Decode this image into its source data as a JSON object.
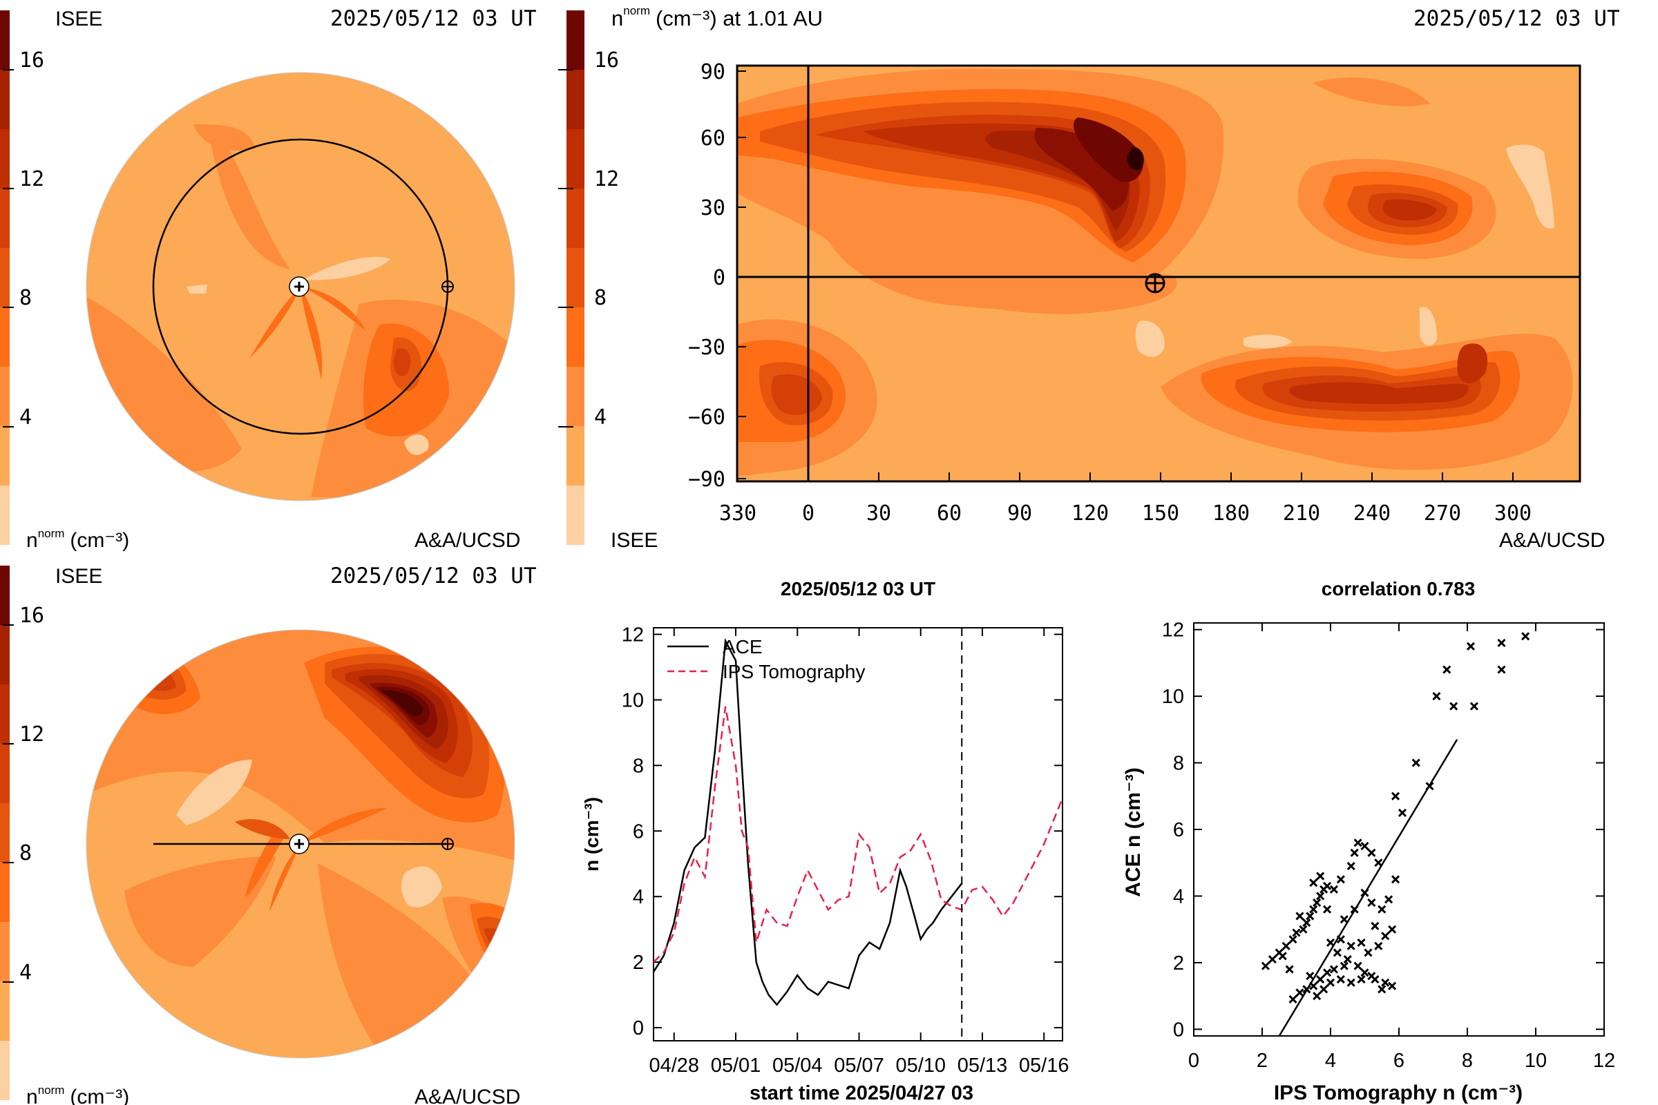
{
  "colors": {
    "c1": "#fdd0a2",
    "c2": "#fdaa56",
    "c3": "#fd8d3c",
    "c4": "#fd6e16",
    "c5": "#e6550d",
    "c6": "#d44008",
    "c7": "#c02e04",
    "c8": "#a62203",
    "c9": "#8b0f02",
    "c10": "#6e0601",
    "c11": "#4d0300",
    "c12": "#2a0000",
    "ips": "#e8204a",
    "ace": "#000000",
    "background": "#ffffff"
  },
  "colorbar": {
    "ticks": [
      "4",
      "8",
      "12",
      "16"
    ],
    "levels": 12
  },
  "panel_top_left": {
    "org": "ISEE",
    "date": "2025/05/12 03 UT",
    "unit_base": "n",
    "unit_sup": "norm",
    "unit_tail": "(cm⁻³)",
    "credit": "A&A/UCSD"
  },
  "panel_bottom_left": {
    "org": "ISEE",
    "date": "2025/05/12 03 UT",
    "unit_base": "n",
    "unit_sup": "norm",
    "unit_tail": "(cm⁻³)",
    "credit": "A&A/UCSD"
  },
  "panel_map": {
    "title_base": "n",
    "title_sup": "norm",
    "title_tail": "(cm⁻³) at 1.01 AU",
    "date": "2025/05/12 03 UT",
    "org": "ISEE",
    "credit": "A&A/UCSD",
    "x_ticks": [
      "330",
      "0",
      "30",
      "60",
      "90",
      "120",
      "150",
      "180",
      "210",
      "240",
      "270",
      "300"
    ],
    "y_ticks": [
      "90",
      "60",
      "30",
      "0",
      "−30",
      "−60",
      "−90"
    ]
  },
  "chart_data": [
    {
      "type": "line",
      "title": "2025/05/12 03 UT",
      "xlabel": "start time 2025/04/27 03",
      "ylabel": "n (cm⁻³)",
      "x_unit": "days after 2025/04/27 03 UT",
      "x_ticks": [
        1,
        4,
        7,
        10,
        13,
        16,
        19
      ],
      "x_tick_labels": [
        "04/28",
        "05/01",
        "05/04",
        "05/07",
        "05/10",
        "05/13",
        "05/16"
      ],
      "y_ticks": [
        0,
        2,
        4,
        6,
        8,
        10,
        12
      ],
      "xlim": [
        0,
        19.9
      ],
      "ylim": [
        -0.4,
        12.2
      ],
      "now_marker_x": 15.0,
      "series": [
        {
          "name": "ACE",
          "style": "solid",
          "x": [
            0,
            0.5,
            1,
            1.5,
            2,
            2.5,
            3,
            3.5,
            4,
            4.3,
            4.6,
            5,
            5.3,
            5.6,
            6,
            6.5,
            7,
            7.5,
            8,
            8.5,
            9,
            9.5,
            10,
            10.5,
            11,
            11.5,
            12,
            12.3,
            12.7,
            13,
            13.3,
            13.6,
            14,
            14.5,
            15
          ],
          "values": [
            1.7,
            2.2,
            3.2,
            4.8,
            5.5,
            5.8,
            8.5,
            11.8,
            11.2,
            8.0,
            5.0,
            2.0,
            1.4,
            1.0,
            0.7,
            1.1,
            1.6,
            1.2,
            1.0,
            1.4,
            1.3,
            1.2,
            2.2,
            2.6,
            2.4,
            3.2,
            4.8,
            4.3,
            3.4,
            2.7,
            3.0,
            3.2,
            3.6,
            4.0,
            4.4
          ]
        },
        {
          "name": "IPS Tomography",
          "style": "dashed",
          "x": [
            0,
            0.5,
            1,
            1.5,
            2,
            2.5,
            3,
            3.5,
            4,
            4.3,
            4.6,
            5,
            5.5,
            6,
            6.5,
            7,
            7.5,
            8,
            8.5,
            9,
            9.5,
            10,
            10.5,
            11,
            11.5,
            12,
            12.5,
            13,
            13.5,
            14,
            14.5,
            15,
            15.5,
            16,
            16.5,
            17,
            17.5,
            18,
            18.5,
            19,
            19.9
          ],
          "values": [
            2.0,
            2.3,
            2.9,
            4.4,
            5.2,
            4.6,
            7.4,
            9.8,
            8.0,
            6.0,
            5.5,
            2.6,
            3.6,
            3.2,
            3.1,
            4.0,
            4.8,
            4.2,
            3.6,
            3.9,
            4.0,
            5.9,
            5.5,
            4.1,
            4.4,
            5.2,
            5.4,
            5.9,
            5.1,
            3.9,
            3.7,
            3.6,
            4.2,
            4.3,
            3.9,
            3.4,
            3.8,
            4.4,
            5.0,
            5.6,
            7.0
          ]
        }
      ]
    },
    {
      "type": "scatter",
      "title": "correlation 0.783",
      "xlabel": "IPS Tomography n (cm⁻³)",
      "ylabel": "ACE n (cm⁻³)",
      "xlim": [
        0,
        12
      ],
      "ylim": [
        -0.2,
        12.2
      ],
      "x_ticks": [
        0,
        2,
        4,
        6,
        8,
        10,
        12
      ],
      "y_ticks": [
        0,
        2,
        4,
        6,
        8,
        10,
        12
      ],
      "fit_line": {
        "x": [
          2.5,
          7.7
        ],
        "y": [
          -0.4,
          8.7
        ]
      },
      "points": [
        [
          2.1,
          1.9
        ],
        [
          2.3,
          2.1
        ],
        [
          2.5,
          2.3
        ],
        [
          2.7,
          2.5
        ],
        [
          2.9,
          2.7
        ],
        [
          3.0,
          2.9
        ],
        [
          3.2,
          3.0
        ],
        [
          3.3,
          3.2
        ],
        [
          3.4,
          3.4
        ],
        [
          3.5,
          3.6
        ],
        [
          3.6,
          3.8
        ],
        [
          3.7,
          4.0
        ],
        [
          3.8,
          4.2
        ],
        [
          3.5,
          4.4
        ],
        [
          3.7,
          4.6
        ],
        [
          3.9,
          4.3
        ],
        [
          4.1,
          4.2
        ],
        [
          4.3,
          4.5
        ],
        [
          4.6,
          4.9
        ],
        [
          4.7,
          5.3
        ],
        [
          4.8,
          5.6
        ],
        [
          5.0,
          5.5
        ],
        [
          5.2,
          5.3
        ],
        [
          5.4,
          5.0
        ],
        [
          5.0,
          4.1
        ],
        [
          5.2,
          3.8
        ],
        [
          5.5,
          3.6
        ],
        [
          5.3,
          3.1
        ],
        [
          5.6,
          2.8
        ],
        [
          5.8,
          3.0
        ],
        [
          5.4,
          2.5
        ],
        [
          5.1,
          2.3
        ],
        [
          4.9,
          2.6
        ],
        [
          4.6,
          2.5
        ],
        [
          4.3,
          2.7
        ],
        [
          4.0,
          2.6
        ],
        [
          4.2,
          2.3
        ],
        [
          4.5,
          2.1
        ],
        [
          4.8,
          1.9
        ],
        [
          5.0,
          1.7
        ],
        [
          5.3,
          1.5
        ],
        [
          5.6,
          1.4
        ],
        [
          5.8,
          1.3
        ],
        [
          5.5,
          1.2
        ],
        [
          5.2,
          1.6
        ],
        [
          4.9,
          1.5
        ],
        [
          4.6,
          1.4
        ],
        [
          4.3,
          1.5
        ],
        [
          4.0,
          1.4
        ],
        [
          3.7,
          1.5
        ],
        [
          3.5,
          1.3
        ],
        [
          3.3,
          1.2
        ],
        [
          3.1,
          1.1
        ],
        [
          2.9,
          0.9
        ],
        [
          3.6,
          1.0
        ],
        [
          3.8,
          1.2
        ],
        [
          3.4,
          1.6
        ],
        [
          3.9,
          1.7
        ],
        [
          4.1,
          1.8
        ],
        [
          4.4,
          1.9
        ],
        [
          2.6,
          2.2
        ],
        [
          2.8,
          1.8
        ],
        [
          3.1,
          3.4
        ],
        [
          3.9,
          3.6
        ],
        [
          4.4,
          3.3
        ],
        [
          4.7,
          3.6
        ],
        [
          6.1,
          6.5
        ],
        [
          5.9,
          7.0
        ],
        [
          6.5,
          8.0
        ],
        [
          6.9,
          7.3
        ],
        [
          7.1,
          10.0
        ],
        [
          7.4,
          10.8
        ],
        [
          7.6,
          9.7
        ],
        [
          8.1,
          11.5
        ],
        [
          8.2,
          9.7
        ],
        [
          9.0,
          11.6
        ],
        [
          9.0,
          10.8
        ],
        [
          9.7,
          11.8
        ],
        [
          5.9,
          4.5
        ],
        [
          5.7,
          3.9
        ]
      ]
    }
  ]
}
